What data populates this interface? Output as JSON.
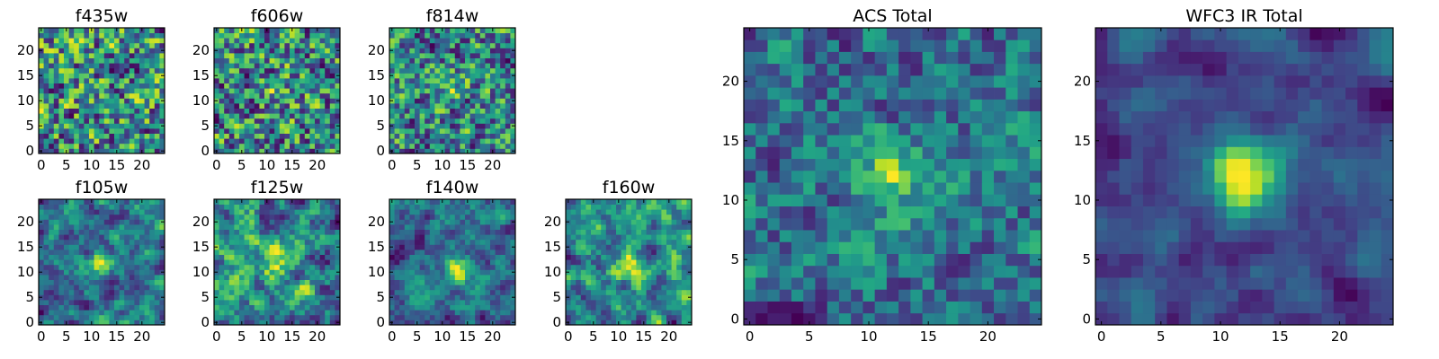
{
  "figure": {
    "description_free": true
  },
  "chart_data": [
    {
      "type": "heatmap",
      "title": "f435w",
      "xticks": [
        0,
        5,
        10,
        15,
        20
      ],
      "yticks": [
        0,
        5,
        10,
        15,
        20
      ],
      "xlim": [
        0,
        24
      ],
      "ylim": [
        0,
        24
      ],
      "grid_size": 25,
      "colormap": "viridis",
      "grid": false,
      "seed": 11,
      "smooth": 0.15,
      "hotspot": null
    },
    {
      "type": "heatmap",
      "title": "f606w",
      "xticks": [
        0,
        5,
        10,
        15,
        20
      ],
      "yticks": [
        0,
        5,
        10,
        15,
        20
      ],
      "xlim": [
        0,
        24
      ],
      "ylim": [
        0,
        24
      ],
      "grid_size": 25,
      "colormap": "viridis",
      "grid": false,
      "seed": 23,
      "smooth": 0.2,
      "hotspot": [
        12,
        12,
        0.15
      ]
    },
    {
      "type": "heatmap",
      "title": "f814w",
      "xticks": [
        0,
        5,
        10,
        15,
        20
      ],
      "yticks": [
        0,
        5,
        10,
        15,
        20
      ],
      "xlim": [
        0,
        24
      ],
      "ylim": [
        0,
        24
      ],
      "grid_size": 25,
      "colormap": "viridis",
      "grid": false,
      "seed": 37,
      "smooth": 0.2,
      "hotspot": [
        12,
        13,
        0.2
      ]
    },
    {
      "type": "heatmap",
      "title": "f105w",
      "xticks": [
        0,
        5,
        10,
        15,
        20
      ],
      "yticks": [
        0,
        5,
        10,
        15,
        20
      ],
      "xlim": [
        0,
        24
      ],
      "ylim": [
        0,
        24
      ],
      "grid_size": 25,
      "colormap": "viridis",
      "grid": false,
      "seed": 41,
      "smooth": 0.55,
      "hotspot": [
        12,
        12,
        0.3
      ]
    },
    {
      "type": "heatmap",
      "title": "f125w",
      "xticks": [
        0,
        5,
        10,
        15,
        20
      ],
      "yticks": [
        0,
        5,
        10,
        15,
        20
      ],
      "xlim": [
        0,
        24
      ],
      "ylim": [
        0,
        24
      ],
      "grid_size": 25,
      "colormap": "viridis",
      "grid": false,
      "seed": 53,
      "smooth": 0.5,
      "hotspot": [
        12,
        12,
        0.25
      ]
    },
    {
      "type": "heatmap",
      "title": "f140w",
      "xticks": [
        0,
        5,
        10,
        15,
        20
      ],
      "yticks": [
        0,
        5,
        10,
        15,
        20
      ],
      "xlim": [
        0,
        24
      ],
      "ylim": [
        0,
        24
      ],
      "grid_size": 25,
      "colormap": "viridis",
      "grid": false,
      "seed": 67,
      "smooth": 0.55,
      "hotspot": [
        13,
        10,
        0.35
      ]
    },
    {
      "type": "heatmap",
      "title": "f160w",
      "xticks": [
        0,
        5,
        10,
        15,
        20
      ],
      "yticks": [
        0,
        5,
        10,
        15,
        20
      ],
      "xlim": [
        0,
        24
      ],
      "ylim": [
        0,
        24
      ],
      "grid_size": 25,
      "colormap": "viridis",
      "grid": false,
      "seed": 79,
      "smooth": 0.55,
      "hotspot": [
        12,
        11,
        0.3
      ]
    },
    {
      "type": "heatmap",
      "title": "ACS Total",
      "xticks": [
        0,
        5,
        10,
        15,
        20
      ],
      "yticks": [
        0,
        5,
        10,
        15,
        20
      ],
      "xlim": [
        0,
        24
      ],
      "ylim": [
        0,
        24
      ],
      "grid_size": 25,
      "colormap": "viridis",
      "grid": false,
      "seed": 97,
      "smooth": 0.3,
      "hotspot": [
        12,
        12,
        0.5
      ]
    },
    {
      "type": "heatmap",
      "title": "WFC3 IR Total",
      "xticks": [
        0,
        5,
        10,
        15,
        20
      ],
      "yticks": [
        0,
        5,
        10,
        15,
        20
      ],
      "xlim": [
        0,
        24
      ],
      "ylim": [
        0,
        24
      ],
      "grid_size": 25,
      "colormap": "viridis",
      "grid": false,
      "seed": 113,
      "smooth": 0.65,
      "hotspot": [
        12,
        12,
        0.9
      ]
    }
  ]
}
